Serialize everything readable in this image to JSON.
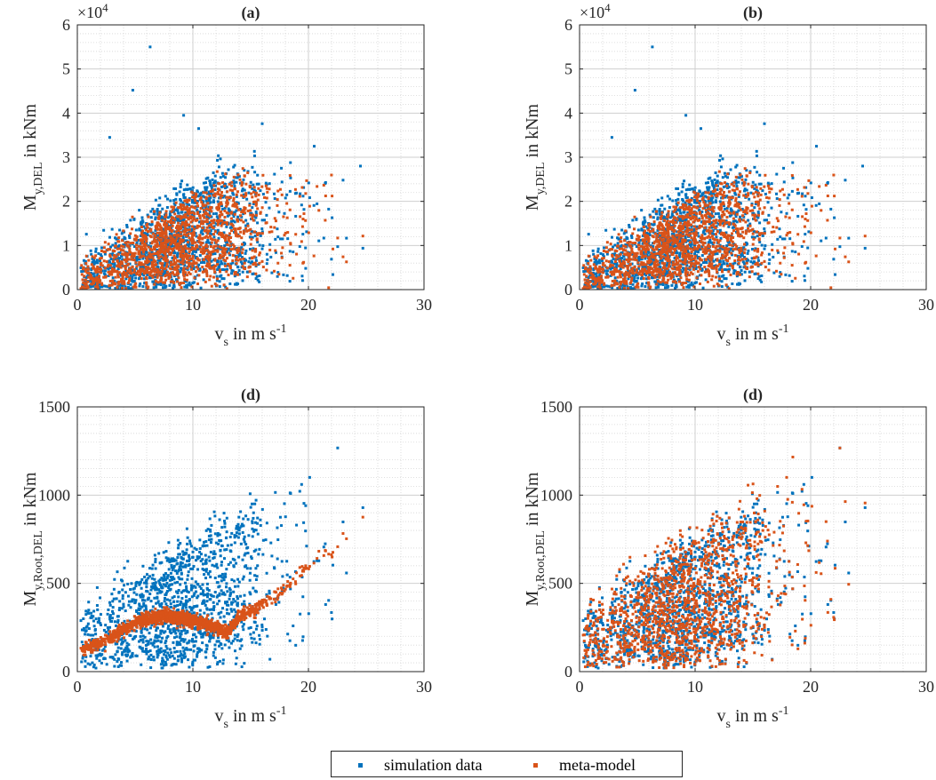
{
  "chart_data": [
    {
      "type": "scatter",
      "title": "(a)",
      "xlabel": "v_s in m s^-1",
      "ylabel": "M_y,DEL in kNm",
      "xlim": [
        0,
        30
      ],
      "ylim": [
        0,
        60000
      ],
      "xticks": [
        "0",
        "10",
        "20",
        "30"
      ],
      "yticks": [
        "0",
        "1",
        "2",
        "3",
        "4",
        "5",
        "6"
      ],
      "exponent": "×10^4",
      "grid": "major and minor, dotted",
      "series": [
        {
          "name": "simulation data",
          "color": "#0072BD",
          "values": "dense cloud over x 0–25, y mostly 0–25000; outliers (6.3,55000),(4.8,45200),(9.2,39500),(16,37600),(20.5,32500),(24.5,28000)"
        },
        {
          "name": "meta-model",
          "color": "#D95319",
          "values": "dense cloud over x 0–25, y 0–24000 following simulation trend"
        }
      ]
    },
    {
      "type": "scatter",
      "title": "(b)",
      "xlabel": "v_s in m s^-1",
      "ylabel": "M_y,DEL in kNm",
      "xlim": [
        0,
        30
      ],
      "ylim": [
        0,
        60000
      ],
      "xticks": [
        "0",
        "10",
        "20",
        "30"
      ],
      "yticks": [
        "0",
        "1",
        "2",
        "3",
        "4",
        "5",
        "6"
      ],
      "exponent": "×10^4",
      "grid": "major and minor, dotted",
      "series": [
        {
          "name": "simulation data",
          "color": "#0072BD"
        },
        {
          "name": "meta-model",
          "color": "#D95319"
        }
      ]
    },
    {
      "type": "scatter",
      "title": "(d)",
      "xlabel": "v_s in m s^-1",
      "ylabel": "M_y,Root,DEL in kNm",
      "xlim": [
        0,
        30
      ],
      "ylim": [
        0,
        1500
      ],
      "xticks": [
        "0",
        "10",
        "20",
        "30"
      ],
      "yticks": [
        "0",
        "500",
        "1000",
        "1500"
      ],
      "grid": "major and minor, dotted",
      "series": [
        {
          "name": "simulation data",
          "color": "#0072BD",
          "values": "wide cloud x 0–25, y 0–1350"
        },
        {
          "name": "meta-model",
          "color": "#D95319",
          "values": "narrow band: (0.5,120),(3,180),(5,280),(7.5,320),(10,290),(12,250),(13,220),(15,350),(18,470),(20,600),(22,680),(25,940)"
        }
      ]
    },
    {
      "type": "scatter",
      "title": "(d)",
      "xlabel": "v_s in m s^-1",
      "ylabel": "M_y,Root,DEL in kNm",
      "xlim": [
        0,
        30
      ],
      "ylim": [
        0,
        1500
      ],
      "xticks": [
        "0",
        "10",
        "20",
        "30"
      ],
      "yticks": [
        "0",
        "500",
        "1000",
        "1500"
      ],
      "grid": "major and minor, dotted",
      "series": [
        {
          "name": "simulation data",
          "color": "#0072BD"
        },
        {
          "name": "meta-model",
          "color": "#D95319"
        }
      ]
    }
  ],
  "legend": {
    "placement": "bottom-center",
    "items": [
      {
        "label": "simulation data",
        "color": "#0072BD"
      },
      {
        "label": "meta-model",
        "color": "#D95319"
      }
    ]
  }
}
